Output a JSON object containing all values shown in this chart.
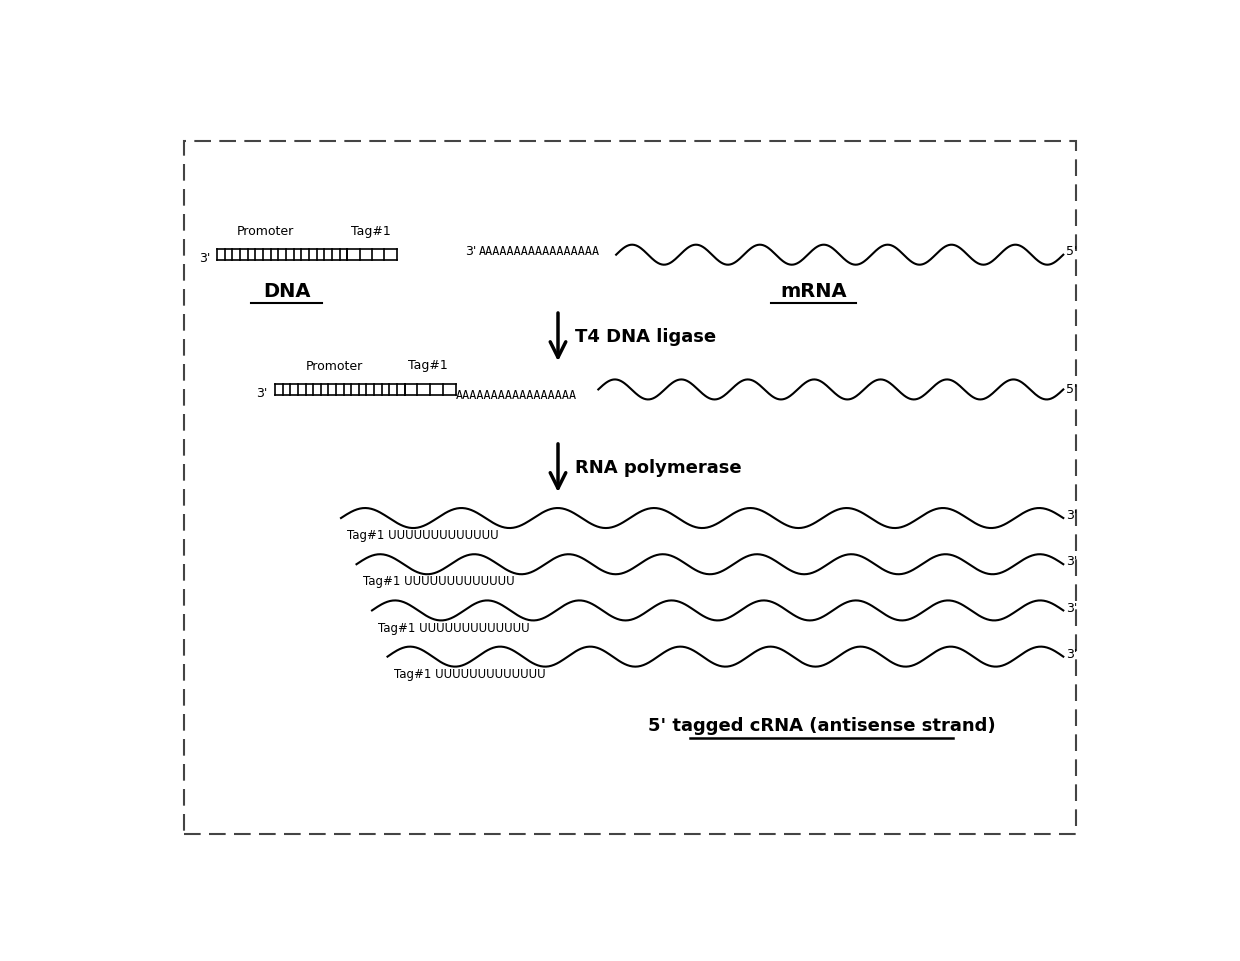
{
  "bg_color": "#ffffff",
  "border_color": "#444444",
  "dna_label": "DNA",
  "mrna_label": "mRNA",
  "step1_arrow_label": "T4 DNA ligase",
  "step2_arrow_label": "RNA polymerase",
  "final_label": "5' tagged cRNA (antisense strand)",
  "tag_label": "Tag#1",
  "promoter_label": "Promoter",
  "uuu_label": "Tag#1 UUUUUUUUUUUUU",
  "aaa_text": "AAAAAAAAAAAAAAAAA"
}
